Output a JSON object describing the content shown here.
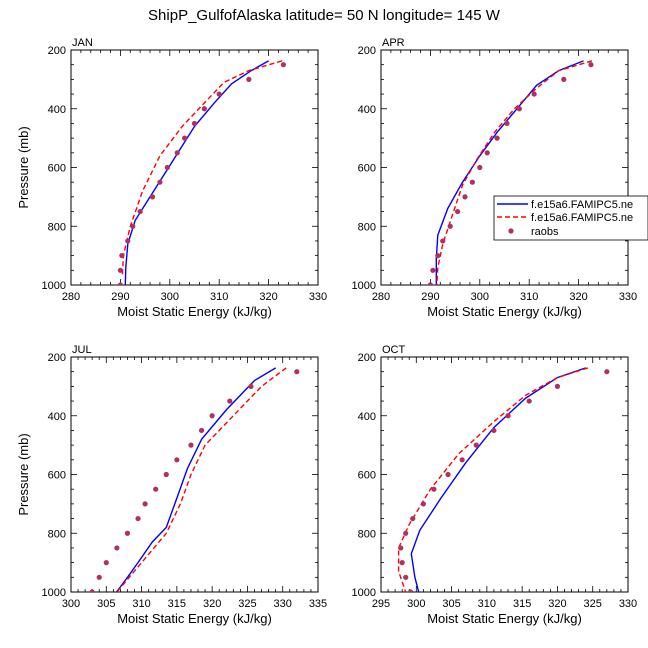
{
  "title": "ShipP_GulfofAlaska  latitude= 50 N longitude= 145 W",
  "colors": {
    "series_solid": "#0000ff",
    "series_dashed": "#ff0000",
    "raobs": "#b03060"
  },
  "legend": {
    "entries": [
      "f.e15a6.FAMIPC5.ne",
      "f.e15a6.FAMIPC5.ne",
      "raobs"
    ]
  },
  "chart_data": [
    {
      "type": "line",
      "panel": "JAN",
      "xlabel": "Moist Static Energy (kJ/kg)",
      "ylabel": "Pressure (mb)",
      "xlim": [
        280,
        330
      ],
      "ylim": [
        1000,
        200
      ],
      "xticks": [
        280,
        290,
        300,
        310,
        320,
        330
      ],
      "yticks": [
        200,
        400,
        600,
        800,
        1000
      ],
      "series": [
        {
          "style": "solid",
          "x": [
            320.0,
            316.5,
            312.5,
            309.0,
            305.0,
            302.0,
            299.0,
            296.0,
            293.0,
            291.5,
            291.1,
            291.0
          ],
          "y": [
            237,
            270,
            315,
            380,
            460,
            540,
            620,
            700,
            780,
            860,
            940,
            1000
          ]
        },
        {
          "style": "dashed",
          "x": [
            322.7,
            316.0,
            311.0,
            307.0,
            302.5,
            298.0,
            294.5,
            292.0,
            290.6,
            290.4
          ],
          "y": [
            237,
            270,
            310,
            380,
            460,
            560,
            680,
            800,
            900,
            970
          ]
        },
        {
          "style": "markers",
          "x": [
            323.0,
            316.0,
            310.0,
            307.0,
            305.0,
            303.0,
            301.5,
            299.5,
            298.0,
            296.5,
            294.0,
            292.5,
            291.5,
            290.3,
            290.0,
            290.0
          ],
          "y": [
            250,
            300,
            350,
            400,
            450,
            500,
            550,
            600,
            650,
            700,
            750,
            800,
            850,
            900,
            950,
            1000
          ]
        }
      ]
    },
    {
      "type": "line",
      "panel": "APR",
      "xlabel": "Moist Static Energy (kJ/kg)",
      "ylabel": "",
      "xlim": [
        280,
        330
      ],
      "ylim": [
        1000,
        200
      ],
      "xticks": [
        280,
        290,
        300,
        310,
        320,
        330
      ],
      "yticks": [
        200,
        400,
        600,
        800,
        1000
      ],
      "series": [
        {
          "style": "solid",
          "x": [
            321.0,
            316.0,
            311.5,
            307.5,
            303.5,
            300.0,
            296.5,
            293.5,
            291.5,
            291.2,
            291.2
          ],
          "y": [
            237,
            270,
            320,
            400,
            480,
            560,
            650,
            740,
            830,
            910,
            1000
          ]
        },
        {
          "style": "dashed",
          "x": [
            322.7,
            316.0,
            311.5,
            307.0,
            303.0,
            299.5,
            296.5,
            294.5,
            292.5,
            291.5,
            291.3
          ],
          "y": [
            237,
            270,
            330,
            400,
            480,
            570,
            660,
            760,
            860,
            940,
            1000
          ]
        },
        {
          "style": "markers",
          "x": [
            322.5,
            317.0,
            311.0,
            308.0,
            305.5,
            303.5,
            301.5,
            300.0,
            298.5,
            297.0,
            295.5,
            294.0,
            292.5,
            291.5,
            290.5,
            290.0,
            290.0
          ],
          "y": [
            250,
            300,
            350,
            400,
            450,
            500,
            550,
            600,
            650,
            700,
            750,
            800,
            850,
            900,
            950,
            1000,
            1000
          ]
        }
      ]
    },
    {
      "type": "line",
      "panel": "JUL",
      "xlabel": "Moist Static Energy (kJ/kg)",
      "ylabel": "Pressure (mb)",
      "xlim": [
        300,
        335
      ],
      "ylim": [
        1000,
        200
      ],
      "xticks": [
        300,
        305,
        310,
        315,
        320,
        325,
        330,
        335
      ],
      "yticks": [
        200,
        400,
        600,
        800,
        1000
      ],
      "series": [
        {
          "style": "solid",
          "x": [
            329.0,
            326.0,
            322.0,
            318.5,
            316.5,
            315.0,
            313.5,
            311.5,
            309.5,
            308.0,
            306.0
          ],
          "y": [
            237,
            280,
            380,
            480,
            580,
            680,
            780,
            830,
            900,
            950,
            1015
          ]
        },
        {
          "style": "dashed",
          "x": [
            330.5,
            327.0,
            323.0,
            319.0,
            317.0,
            315.5,
            313.5,
            310.0,
            306.5
          ],
          "y": [
            237,
            300,
            400,
            500,
            600,
            700,
            800,
            900,
            1000
          ]
        },
        {
          "style": "markers",
          "x": [
            332.0,
            325.5,
            322.5,
            320.0,
            318.5,
            317.0,
            315.0,
            313.5,
            312.0,
            310.5,
            309.5,
            308.0,
            306.5,
            305.0,
            304.0,
            303.0
          ],
          "y": [
            250,
            300,
            350,
            400,
            450,
            500,
            550,
            600,
            650,
            700,
            750,
            800,
            850,
            900,
            950,
            1000
          ]
        }
      ]
    },
    {
      "type": "line",
      "panel": "OCT",
      "xlabel": "Moist Static Energy (kJ/kg)",
      "ylabel": "",
      "xlim": [
        295,
        330
      ],
      "ylim": [
        1000,
        200
      ],
      "xticks": [
        295,
        300,
        305,
        310,
        315,
        320,
        325,
        330
      ],
      "yticks": [
        200,
        400,
        600,
        800,
        1000
      ],
      "series": [
        {
          "style": "solid",
          "x": [
            324.0,
            320.0,
            315.5,
            311.0,
            307.0,
            303.5,
            300.5,
            299.3,
            299.8,
            300.5
          ],
          "y": [
            237,
            270,
            340,
            440,
            560,
            680,
            790,
            870,
            950,
            1015
          ]
        },
        {
          "style": "dashed",
          "x": [
            324.3,
            320.0,
            315.5,
            311.0,
            306.0,
            302.0,
            299.0,
            297.5,
            297.5,
            298.5
          ],
          "y": [
            237,
            270,
            330,
            420,
            530,
            650,
            770,
            850,
            930,
            1000
          ]
        },
        {
          "style": "markers",
          "x": [
            327.0,
            320.0,
            316.0,
            313.0,
            311.0,
            308.5,
            306.5,
            304.5,
            302.5,
            301.0,
            299.5,
            298.5,
            297.8,
            298.0,
            298.5,
            299.2
          ],
          "y": [
            250,
            300,
            350,
            400,
            450,
            500,
            550,
            600,
            650,
            700,
            750,
            800,
            850,
            900,
            950,
            1000
          ]
        }
      ]
    }
  ]
}
